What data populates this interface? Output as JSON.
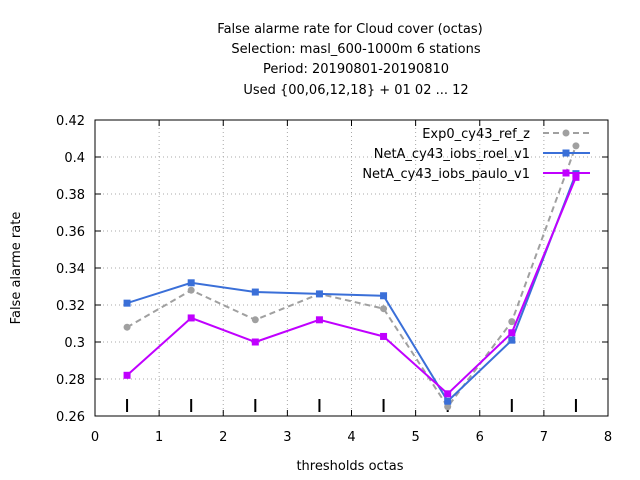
{
  "chart_data": {
    "type": "line",
    "title_lines": [
      "False alarme rate  for Cloud cover (octas)",
      "Selection: masl_600-1000m      6 stations",
      "Period: 20190801-20190810",
      "Used {00,06,12,18} + 01 02 ... 12"
    ],
    "xlabel": "thresholds octas",
    "ylabel": "False alarme rate",
    "xlim": [
      0,
      8
    ],
    "ylim": [
      0.26,
      0.42
    ],
    "xticks": [
      "0",
      "1",
      "2",
      "3",
      "4",
      "5",
      "6",
      "7",
      "8"
    ],
    "yticks": [
      "0.26",
      "0.28",
      "0.3",
      "0.32",
      "0.34",
      "0.36",
      "0.38",
      "0.4",
      "0.42"
    ],
    "grid": true,
    "legend_position": "top-right",
    "x": [
      0.5,
      1.5,
      2.5,
      3.5,
      4.5,
      5.5,
      6.5,
      7.5
    ],
    "series": [
      {
        "name": "Exp0_cy43_ref_z",
        "color": "#a0a0a0",
        "dashed": true,
        "marker": "circle",
        "values": [
          0.308,
          0.328,
          0.312,
          0.326,
          0.318,
          0.265,
          0.311,
          0.406
        ]
      },
      {
        "name": "NetA_cy43_iobs_roel_v1",
        "color": "#3a6fd8",
        "dashed": false,
        "marker": "square",
        "values": [
          0.321,
          0.332,
          0.327,
          0.326,
          0.325,
          0.268,
          0.301,
          0.391
        ]
      },
      {
        "name": "NetA_cy43_iobs_paulo_v1",
        "color": "#c000ff",
        "dashed": false,
        "marker": "square",
        "values": [
          0.282,
          0.313,
          0.3,
          0.312,
          0.303,
          0.272,
          0.305,
          0.389
        ]
      }
    ],
    "sample_ticks_x": [
      0.5,
      1.5,
      2.5,
      3.5,
      4.5,
      5.5,
      6.5,
      7.5
    ]
  }
}
